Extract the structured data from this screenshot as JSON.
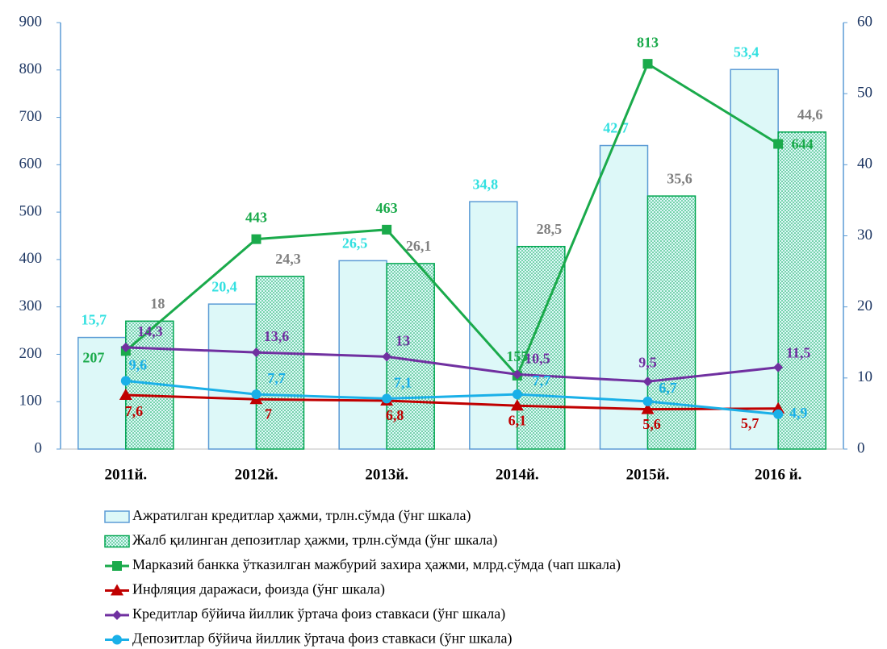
{
  "chart_data": {
    "type": "bar",
    "categories": [
      "2011й.",
      "2012й.",
      "2013й.",
      "2014й.",
      "2015й.",
      "2016 й."
    ],
    "ylim": [
      0,
      900
    ],
    "yticks": [
      0,
      100,
      200,
      300,
      400,
      500,
      600,
      700,
      800,
      900
    ],
    "y2lim": [
      0,
      60
    ],
    "y2ticks": [
      0,
      10,
      20,
      30,
      40,
      50,
      60
    ],
    "series": [
      {
        "name": "Ажратилган кредитлар ҳажми, трлн.сўмда (ўнг шкала)",
        "type": "bar",
        "axis": "y2",
        "color": "#ddf8f8",
        "edge": "#5b9bd5",
        "label_color": "#33e0e0",
        "values": [
          15.7,
          20.4,
          26.5,
          34.8,
          42.7,
          53.4
        ],
        "value_labels": [
          "15,7",
          "20,4",
          "26,5",
          "34,8",
          "42,7",
          "53,4"
        ]
      },
      {
        "name": "Жалб қилинган депозитлар ҳажми, трлн.сўмда (ўнг шкала)",
        "type": "bar",
        "axis": "y2",
        "color": "#ddf8f8",
        "edge": "#00a650",
        "pattern": "dots",
        "label_color": "#808080",
        "values": [
          18,
          24.3,
          26.1,
          28.5,
          35.6,
          44.6
        ],
        "value_labels": [
          "18",
          "24,3",
          "26,1",
          "28,5",
          "35,6",
          "44,6"
        ]
      },
      {
        "name": "Марказий банкка ўтказилган мажбурий захира ҳажми, млрд.сўмда (чап шкала)",
        "type": "line",
        "axis": "y",
        "color": "#1aaa4b",
        "marker": "square",
        "values": [
          207,
          443,
          463,
          155,
          813,
          644
        ]
      },
      {
        "name": "Инфляция даражаси, фоизда (ўнг шкала)",
        "type": "line",
        "axis": "y2",
        "color": "#c00000",
        "marker": "triangle",
        "values": [
          7.6,
          7,
          6.8,
          6.1,
          5.6,
          5.7
        ],
        "value_labels": [
          "7,6",
          "7",
          "6,8",
          "6,1",
          "5,6",
          "5,7"
        ]
      },
      {
        "name": "Кредитлар бўйича йиллик ўртача фоиз ставкаси (ўнг шкала)",
        "type": "line",
        "axis": "y2",
        "color": "#7030a0",
        "marker": "diamond",
        "values": [
          14.3,
          13.6,
          13,
          10.5,
          9.5,
          11.5
        ],
        "value_labels": [
          "14,3",
          "13,6",
          "13",
          "10,5",
          "9,5",
          "11,5"
        ]
      },
      {
        "name": "Депозитлар бўйича йиллик ўртача фоиз ставкаси (ўнг шкала)",
        "type": "line",
        "axis": "y2",
        "color": "#1ab0e8",
        "marker": "circle",
        "values": [
          9.6,
          7.7,
          7.1,
          7.7,
          6.7,
          4.9
        ],
        "value_labels": [
          "9,6",
          "7,7",
          "7,1",
          "7,7",
          "6,7",
          "4,9"
        ]
      }
    ]
  }
}
